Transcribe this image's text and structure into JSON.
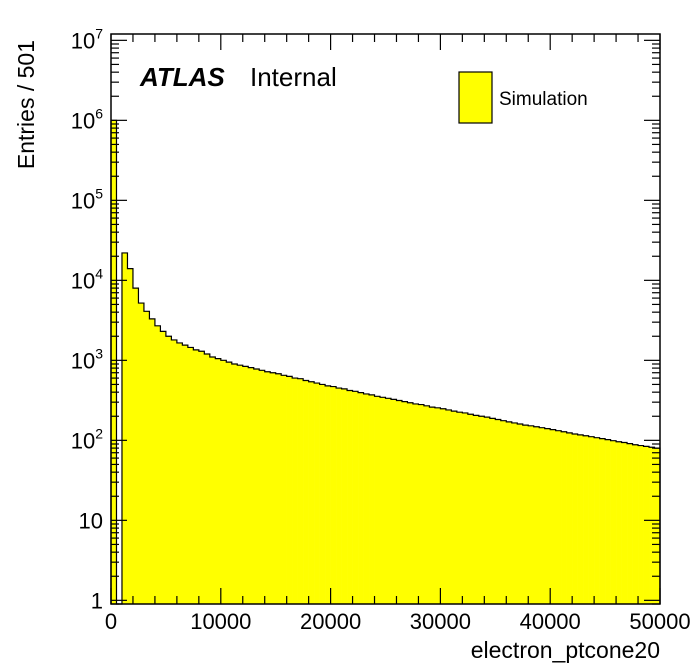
{
  "chart_data": {
    "type": "bar",
    "xlabel": "electron_ptcone20",
    "ylabel": "Entries / 501",
    "y_scale": "log",
    "xlim": [
      0,
      50000
    ],
    "ylim": [
      0.9,
      12000000
    ],
    "bin_width": 501,
    "x_ticks": [
      {
        "value": 0,
        "label": "0"
      },
      {
        "value": 10000,
        "label": "10000"
      },
      {
        "value": 20000,
        "label": "20000"
      },
      {
        "value": 30000,
        "label": "30000"
      },
      {
        "value": 40000,
        "label": "40000"
      },
      {
        "value": 50000,
        "label": "50000"
      }
    ],
    "y_ticks": [
      {
        "value": 1,
        "base": "1",
        "exp": ""
      },
      {
        "value": 10,
        "base": "10",
        "exp": ""
      },
      {
        "value": 100,
        "base": "10",
        "exp": "2"
      },
      {
        "value": 1000,
        "base": "10",
        "exp": "3"
      },
      {
        "value": 10000,
        "base": "10",
        "exp": "4"
      },
      {
        "value": 100000,
        "base": "10",
        "exp": "5"
      },
      {
        "value": 1000000,
        "base": "10",
        "exp": "6"
      },
      {
        "value": 10000000,
        "base": "10",
        "exp": "7"
      }
    ],
    "annotation": {
      "atlas": "ATLAS",
      "status": "Internal"
    },
    "legend": {
      "position": "top-right",
      "entries": [
        {
          "label": "Simulation",
          "color": "#ffff00"
        }
      ]
    },
    "series": [
      {
        "name": "Simulation",
        "color": "#ffff00",
        "edge_color": "#000000",
        "values": [
          1000000,
          0.5,
          22000,
          14000,
          8000,
          5200,
          4100,
          3300,
          2700,
          2300,
          2000,
          1800,
          1650,
          1550,
          1450,
          1350,
          1300,
          1200,
          1100,
          1050,
          1000,
          950,
          900,
          870,
          840,
          810,
          780,
          750,
          720,
          700,
          680,
          650,
          630,
          600,
          590,
          560,
          540,
          520,
          500,
          480,
          470,
          450,
          440,
          420,
          410,
          395,
          380,
          370,
          355,
          345,
          335,
          325,
          315,
          305,
          295,
          285,
          280,
          270,
          260,
          255,
          248,
          240,
          232,
          225,
          220,
          212,
          205,
          200,
          195,
          188,
          182,
          176,
          170,
          165,
          160,
          155,
          152,
          148,
          144,
          140,
          136,
          132,
          128,
          124,
          120,
          117,
          114,
          111,
          108,
          105,
          102,
          99,
          96,
          94,
          91,
          88,
          86,
          84,
          82,
          80
        ]
      }
    ]
  }
}
